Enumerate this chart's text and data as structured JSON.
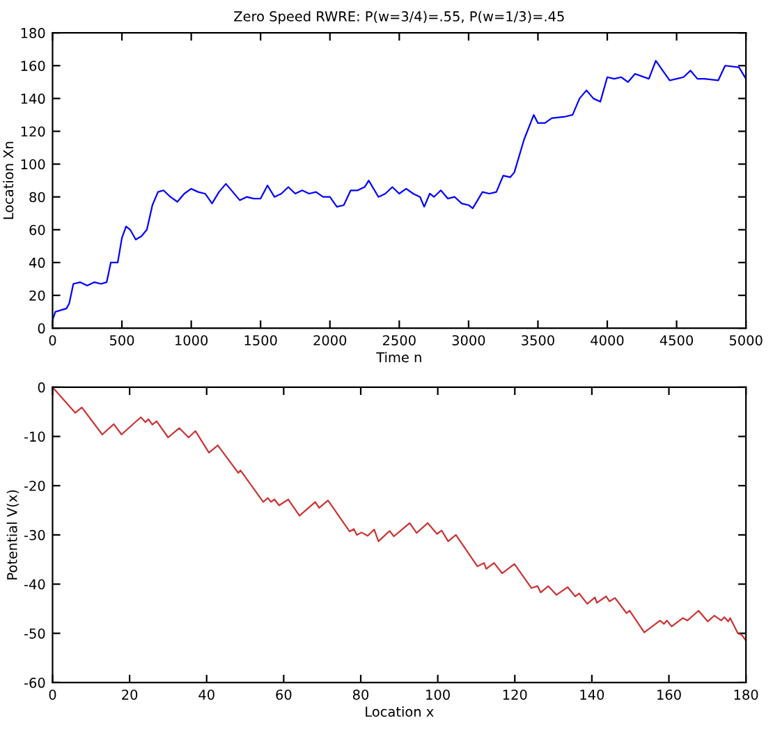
{
  "chart_data": [
    {
      "type": "line",
      "title": "Zero Speed RWRE: P(w=3/4)=.55, P(w=1/3)=.45",
      "xlabel": "Time n",
      "ylabel": "Location Xn",
      "xlim": [
        0,
        5000
      ],
      "ylim": [
        0,
        180
      ],
      "xticks": [
        0,
        500,
        1000,
        1500,
        2000,
        2500,
        3000,
        3500,
        4000,
        4500,
        5000
      ],
      "yticks": [
        0,
        20,
        40,
        60,
        80,
        100,
        120,
        140,
        160,
        180
      ],
      "grid": false,
      "marker": "none",
      "line_style": "solid",
      "series": [
        {
          "color": "#0000ff",
          "x": [
            0,
            20,
            100,
            120,
            150,
            200,
            250,
            300,
            350,
            390,
            420,
            470,
            500,
            530,
            560,
            600,
            620,
            640,
            680,
            720,
            760,
            800,
            850,
            900,
            950,
            1000,
            1050,
            1100,
            1150,
            1200,
            1250,
            1300,
            1350,
            1400,
            1450,
            1500,
            1550,
            1600,
            1650,
            1700,
            1750,
            1800,
            1850,
            1900,
            1950,
            2000,
            2050,
            2100,
            2150,
            2200,
            2250,
            2280,
            2350,
            2400,
            2450,
            2500,
            2550,
            2600,
            2650,
            2680,
            2720,
            2750,
            2800,
            2850,
            2900,
            2950,
            3000,
            3030,
            3100,
            3150,
            3200,
            3250,
            3300,
            3330,
            3400,
            3470,
            3500,
            3550,
            3600,
            3700,
            3750,
            3800,
            3850,
            3900,
            3950,
            4000,
            4050,
            4100,
            4150,
            4200,
            4300,
            4350,
            4400,
            4450,
            4500,
            4550,
            4600,
            4650,
            4700,
            4800,
            4850,
            4950,
            5000
          ],
          "values": [
            5,
            10,
            12,
            15,
            27,
            28,
            26,
            28,
            27,
            28,
            40,
            40,
            55,
            62,
            60,
            54,
            55,
            56,
            60,
            75,
            83,
            84,
            80,
            77,
            82,
            85,
            83,
            82,
            76,
            83,
            88,
            83,
            78,
            80,
            79,
            79,
            87,
            80,
            82,
            86,
            82,
            84,
            82,
            83,
            80,
            80,
            74,
            75,
            84,
            84,
            86,
            90,
            80,
            82,
            86,
            82,
            85,
            82,
            80,
            74,
            82,
            80,
            84,
            79,
            80,
            76,
            75,
            73,
            83,
            82,
            83,
            93,
            92,
            95,
            115,
            130,
            125,
            125,
            128,
            129,
            130,
            140,
            145,
            140,
            138,
            153,
            152,
            153,
            150,
            155,
            152,
            163,
            157,
            151,
            152,
            153,
            157,
            152,
            152,
            151,
            160,
            159,
            152
          ]
        }
      ]
    },
    {
      "type": "line",
      "xlabel": "Location x",
      "ylabel": "Potential V(x)",
      "xlim": [
        0,
        180
      ],
      "ylim": [
        -60,
        0
      ],
      "xticks": [
        0,
        20,
        40,
        60,
        80,
        100,
        120,
        140,
        160,
        180
      ],
      "yticks": [
        -60,
        -50,
        -40,
        -30,
        -20,
        -10,
        0
      ],
      "grid": false,
      "marker": "none",
      "line_style": "solid",
      "series": [
        {
          "color": "#cc3333",
          "x": [
            0,
            5.9,
            7.6,
            12.9,
            15.9,
            17.9,
            22.9,
            24.1,
            24.9,
            25.9,
            27,
            30,
            32.9,
            35.3,
            37.1,
            40.6,
            42.9,
            48.2,
            48.8,
            54.7,
            55.9,
            56.7,
            57.6,
            58.8,
            61.2,
            64.1,
            68.2,
            69.2,
            71.5,
            77.1,
            78.2,
            79,
            80.2,
            81.8,
            83.5,
            84.6,
            87.5,
            88.6,
            92.7,
            94.5,
            97.4,
            99.8,
            101,
            102.7,
            104.7,
            110.3,
            112,
            112.6,
            114.6,
            116.7,
            119.9,
            124.3,
            125.9,
            126.7,
            128.7,
            130.8,
            133.7,
            135.7,
            136.7,
            138.8,
            140.8,
            141.3,
            143.7,
            144.6,
            146,
            149,
            149.8,
            153.6,
            157.7,
            158.7,
            159.5,
            160.7,
            163.6,
            164.8,
            167.7,
            170.1,
            171.8,
            173.6,
            174.4,
            175.4,
            175.9,
            177.9,
            178.9,
            180
          ],
          "values": [
            0,
            -5.2,
            -4.1,
            -9.6,
            -7.5,
            -9.6,
            -6.1,
            -7.1,
            -6.5,
            -7.6,
            -6.9,
            -10.2,
            -8.3,
            -10.2,
            -8.9,
            -13.3,
            -11.8,
            -17.4,
            -16.9,
            -23.3,
            -22.5,
            -23.3,
            -22.8,
            -24,
            -22.8,
            -26.1,
            -23.3,
            -24.5,
            -23,
            -29.3,
            -28.8,
            -30,
            -29.5,
            -30.2,
            -28.9,
            -31.3,
            -29.2,
            -30.3,
            -27.6,
            -29.6,
            -27.6,
            -29.8,
            -29.1,
            -31.3,
            -30,
            -36.4,
            -35.7,
            -36.9,
            -35.7,
            -37.8,
            -35.9,
            -40.8,
            -40.4,
            -41.7,
            -40.4,
            -42.2,
            -40.6,
            -42.5,
            -41.9,
            -44,
            -42.7,
            -43.8,
            -42.5,
            -43.5,
            -42.8,
            -45.9,
            -45.4,
            -49.8,
            -47.4,
            -48.1,
            -47.4,
            -48.6,
            -46.9,
            -47.4,
            -45.4,
            -47.6,
            -46.4,
            -47.4,
            -46.7,
            -47.6,
            -46.9,
            -50,
            -50.3,
            -51.5
          ]
        }
      ]
    }
  ]
}
